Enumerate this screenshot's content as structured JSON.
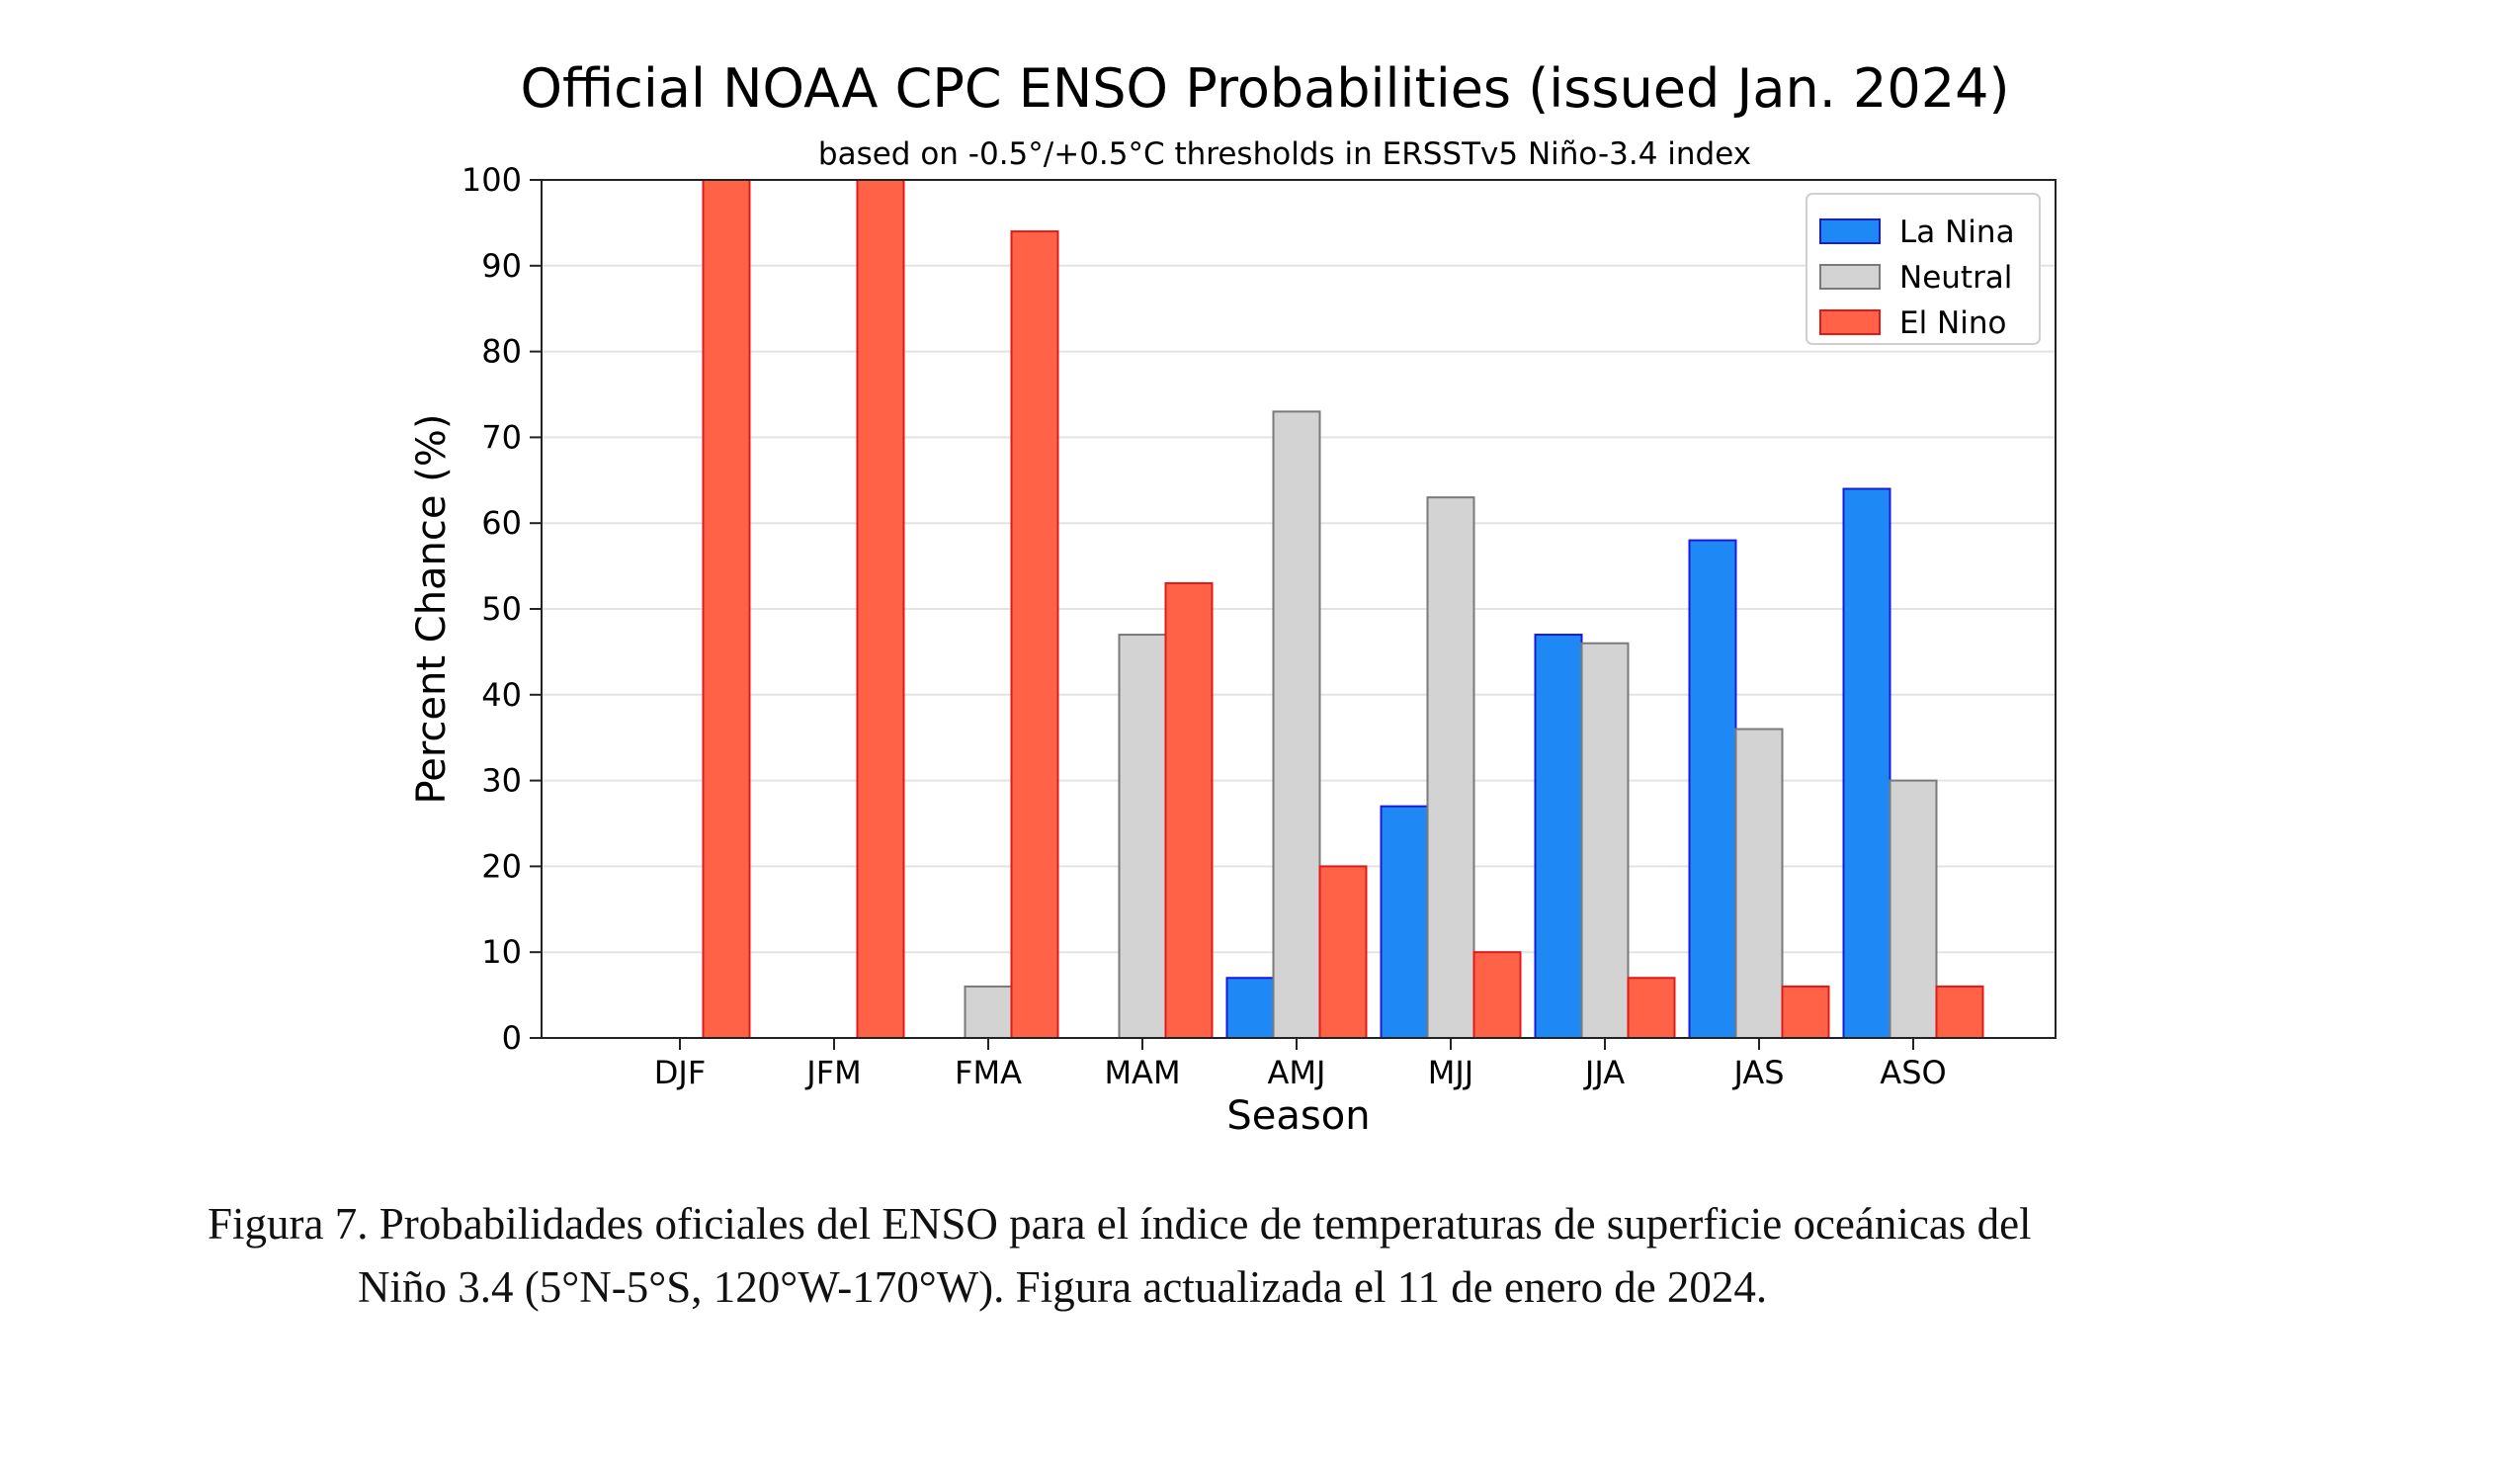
{
  "chart_data": {
    "type": "bar",
    "title": "Official NOAA CPC ENSO Probabilities (issued Jan. 2024)",
    "subtitle": "based on -0.5°/+0.5°C thresholds in ERSSTv5 Niño-3.4 index",
    "xlabel": "Season",
    "ylabel": "Percent Chance (%)",
    "ylim": [
      0,
      100
    ],
    "yticks": [
      0,
      10,
      20,
      30,
      40,
      50,
      60,
      70,
      80,
      90,
      100
    ],
    "categories": [
      "DJF",
      "JFM",
      "FMA",
      "MAM",
      "AMJ",
      "MJJ",
      "JJA",
      "JAS",
      "ASO"
    ],
    "series": [
      {
        "name": "La Nina",
        "color": "#1e88f5",
        "edge": "#1a1adf",
        "values": [
          0,
          0,
          0,
          0,
          7,
          27,
          47,
          58,
          64
        ]
      },
      {
        "name": "Neutral",
        "color": "#d3d3d3",
        "edge": "#7a7a7a",
        "values": [
          0,
          0,
          6,
          47,
          73,
          63,
          46,
          36,
          30
        ]
      },
      {
        "name": "El Nino",
        "color": "#ff6247",
        "edge": "#e01a1a",
        "values": [
          100,
          100,
          94,
          53,
          20,
          10,
          7,
          6,
          6
        ]
      }
    ],
    "grid": "horizontal",
    "legend_position": "top-right"
  },
  "caption": {
    "line1": "Figura 7. Probabilidades oficiales del ENSO para el índice de temperaturas de superficie oceánicas del",
    "line2": "Niño 3.4 (5°N-5°S, 120°W-170°W). Figura actualizada el 11 de enero de 2024."
  }
}
